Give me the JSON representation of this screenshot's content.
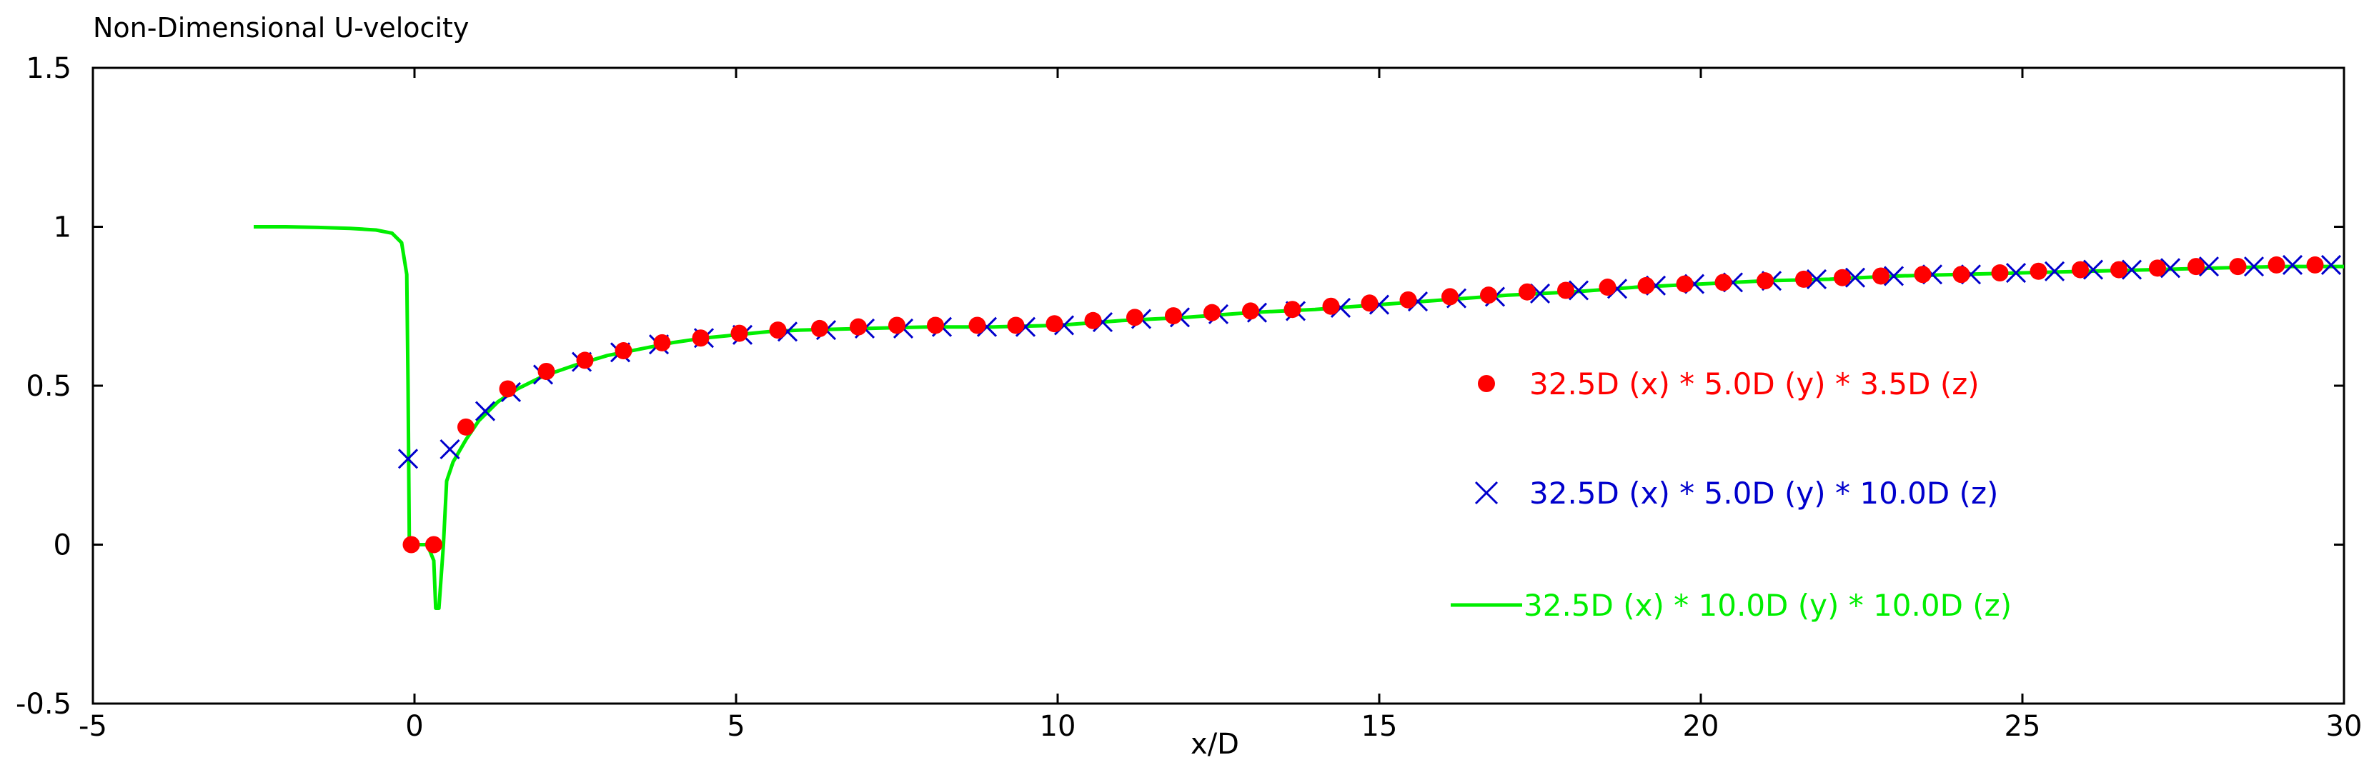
{
  "chart_data": {
    "type": "scatter",
    "title": "Non-Dimensional U-velocity",
    "xlabel": "x/D",
    "ylabel": "",
    "xlim": [
      -5,
      30
    ],
    "ylim": [
      -0.5,
      1.5
    ],
    "xticks": [
      -5,
      0,
      5,
      10,
      15,
      20,
      25,
      30
    ],
    "xtick_labels": [
      "-5",
      "0",
      "5",
      "10",
      "15",
      "20",
      "25",
      "30"
    ],
    "yticks": [
      -0.5,
      0,
      0.5,
      1,
      1.5
    ],
    "ytick_labels": [
      "-0.5",
      "0",
      "0.5",
      "1",
      "1.5"
    ],
    "grid": false,
    "legend_position": "right",
    "series": [
      {
        "name": "32.5D (x) * 5.0D (y) * 3.5D (z)",
        "marker": "filled-circle",
        "color": "#ff0000",
        "points": [
          [
            -0.05,
            0
          ],
          [
            0.3,
            0
          ],
          [
            0.8,
            0.37
          ],
          [
            1.45,
            0.49
          ],
          [
            2.05,
            0.545
          ],
          [
            2.65,
            0.58
          ],
          [
            3.25,
            0.61
          ],
          [
            3.85,
            0.635
          ],
          [
            4.45,
            0.65
          ],
          [
            5.05,
            0.665
          ],
          [
            5.65,
            0.675
          ],
          [
            6.3,
            0.68
          ],
          [
            6.9,
            0.685
          ],
          [
            7.5,
            0.69
          ],
          [
            8.1,
            0.69
          ],
          [
            8.75,
            0.69
          ],
          [
            9.35,
            0.69
          ],
          [
            9.95,
            0.695
          ],
          [
            10.55,
            0.705
          ],
          [
            11.2,
            0.715
          ],
          [
            11.8,
            0.72
          ],
          [
            12.4,
            0.73
          ],
          [
            13.0,
            0.735
          ],
          [
            13.65,
            0.74
          ],
          [
            14.25,
            0.75
          ],
          [
            14.85,
            0.76
          ],
          [
            15.45,
            0.77
          ],
          [
            16.1,
            0.78
          ],
          [
            16.7,
            0.785
          ],
          [
            17.3,
            0.795
          ],
          [
            17.9,
            0.8
          ],
          [
            18.55,
            0.81
          ],
          [
            19.15,
            0.815
          ],
          [
            19.75,
            0.82
          ],
          [
            20.35,
            0.825
          ],
          [
            21.0,
            0.83
          ],
          [
            21.6,
            0.835
          ],
          [
            22.2,
            0.84
          ],
          [
            22.8,
            0.845
          ],
          [
            23.45,
            0.85
          ],
          [
            24.05,
            0.85
          ],
          [
            24.65,
            0.855
          ],
          [
            25.25,
            0.86
          ],
          [
            25.9,
            0.865
          ],
          [
            26.5,
            0.865
          ],
          [
            27.1,
            0.87
          ],
          [
            27.7,
            0.875
          ],
          [
            28.35,
            0.875
          ],
          [
            28.95,
            0.88
          ],
          [
            29.55,
            0.88
          ]
        ]
      },
      {
        "name": "32.5D (x) * 5.0D (y) * 10.0D (z)",
        "marker": "cross",
        "color": "#0000cc",
        "points": [
          [
            -0.1,
            0.27
          ],
          [
            0.55,
            0.3
          ],
          [
            1.1,
            0.42
          ],
          [
            1.5,
            0.48
          ],
          [
            2.0,
            0.535
          ],
          [
            2.6,
            0.575
          ],
          [
            3.2,
            0.605
          ],
          [
            3.8,
            0.63
          ],
          [
            4.5,
            0.65
          ],
          [
            5.1,
            0.66
          ],
          [
            5.8,
            0.67
          ],
          [
            6.4,
            0.675
          ],
          [
            7.0,
            0.68
          ],
          [
            7.6,
            0.68
          ],
          [
            8.2,
            0.685
          ],
          [
            8.9,
            0.685
          ],
          [
            9.5,
            0.685
          ],
          [
            10.1,
            0.69
          ],
          [
            10.7,
            0.7
          ],
          [
            11.3,
            0.71
          ],
          [
            11.9,
            0.715
          ],
          [
            12.5,
            0.725
          ],
          [
            13.1,
            0.73
          ],
          [
            13.7,
            0.735
          ],
          [
            14.4,
            0.745
          ],
          [
            15.0,
            0.755
          ],
          [
            15.6,
            0.765
          ],
          [
            16.2,
            0.775
          ],
          [
            16.8,
            0.78
          ],
          [
            17.5,
            0.79
          ],
          [
            18.1,
            0.8
          ],
          [
            18.7,
            0.805
          ],
          [
            19.3,
            0.815
          ],
          [
            19.9,
            0.82
          ],
          [
            20.5,
            0.825
          ],
          [
            21.1,
            0.83
          ],
          [
            21.8,
            0.835
          ],
          [
            22.4,
            0.84
          ],
          [
            23.0,
            0.845
          ],
          [
            23.6,
            0.85
          ],
          [
            24.2,
            0.85
          ],
          [
            24.9,
            0.855
          ],
          [
            25.5,
            0.86
          ],
          [
            26.1,
            0.865
          ],
          [
            26.7,
            0.865
          ],
          [
            27.3,
            0.87
          ],
          [
            27.9,
            0.875
          ],
          [
            28.6,
            0.875
          ],
          [
            29.2,
            0.88
          ],
          [
            29.8,
            0.88
          ]
        ]
      },
      {
        "name": "32.5D (x) * 10.0D (y) * 10.0D (z)",
        "marker": "line",
        "color": "#00ee00",
        "points": [
          [
            -2.5,
            1.0
          ],
          [
            -2.0,
            1.0
          ],
          [
            -1.5,
            0.998
          ],
          [
            -1.0,
            0.995
          ],
          [
            -0.6,
            0.99
          ],
          [
            -0.35,
            0.98
          ],
          [
            -0.2,
            0.95
          ],
          [
            -0.12,
            0.85
          ],
          [
            -0.1,
            0.5
          ],
          [
            -0.08,
            0.0
          ],
          [
            0.0,
            0.0
          ],
          [
            0.1,
            0.0
          ],
          [
            0.2,
            0.0
          ],
          [
            0.3,
            -0.05
          ],
          [
            0.33,
            -0.2
          ],
          [
            0.38,
            -0.2
          ],
          [
            0.45,
            0.0
          ],
          [
            0.5,
            0.2
          ],
          [
            0.6,
            0.26
          ],
          [
            0.8,
            0.33
          ],
          [
            1.0,
            0.39
          ],
          [
            1.3,
            0.45
          ],
          [
            1.6,
            0.49
          ],
          [
            2.0,
            0.53
          ],
          [
            2.5,
            0.565
          ],
          [
            3.0,
            0.595
          ],
          [
            3.5,
            0.615
          ],
          [
            4.0,
            0.635
          ],
          [
            4.5,
            0.65
          ],
          [
            5.0,
            0.66
          ],
          [
            5.5,
            0.67
          ],
          [
            6.0,
            0.675
          ],
          [
            7.0,
            0.68
          ],
          [
            8.0,
            0.685
          ],
          [
            9.0,
            0.685
          ],
          [
            10.0,
            0.69
          ],
          [
            11.0,
            0.705
          ],
          [
            12.0,
            0.715
          ],
          [
            13.0,
            0.73
          ],
          [
            14.0,
            0.74
          ],
          [
            15.0,
            0.755
          ],
          [
            16.0,
            0.77
          ],
          [
            17.0,
            0.785
          ],
          [
            18.0,
            0.795
          ],
          [
            19.0,
            0.81
          ],
          [
            20.0,
            0.82
          ],
          [
            21.0,
            0.83
          ],
          [
            22.0,
            0.835
          ],
          [
            23.0,
            0.845
          ],
          [
            24.0,
            0.85
          ],
          [
            25.0,
            0.855
          ],
          [
            26.0,
            0.86
          ],
          [
            27.0,
            0.865
          ],
          [
            28.0,
            0.87
          ],
          [
            29.0,
            0.875
          ],
          [
            30.0,
            0.875
          ]
        ]
      }
    ]
  }
}
